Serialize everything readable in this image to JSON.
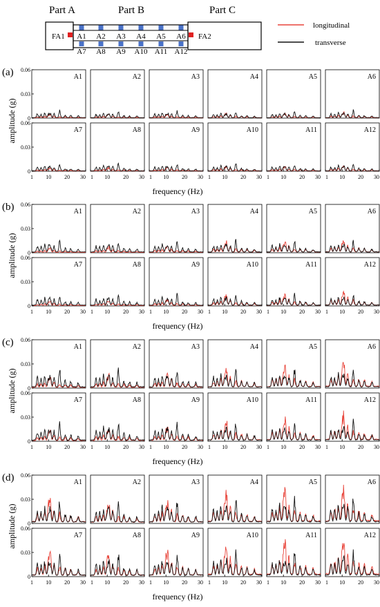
{
  "figure": {
    "legend": [
      {
        "label": "longitudinal",
        "color": "#e8443a"
      },
      {
        "label": "transverse",
        "color": "#111111"
      }
    ],
    "schematic": {
      "parts": [
        "Part A",
        "Part B",
        "Part C"
      ],
      "top_sensors": [
        "A1",
        "A2",
        "A3",
        "A4",
        "A5",
        "A6"
      ],
      "bottom_sensors": [
        "A7",
        "A8",
        "A9",
        "A10",
        "A11",
        "A12"
      ],
      "fixed_sensors": [
        "FA1",
        "FA2"
      ],
      "sensor_color": "#4a72c8",
      "fixed_sensor_color": "#e02020"
    },
    "panel_labels": [
      "(a)",
      "(b)",
      "(c)",
      "(d)"
    ]
  },
  "chart_data": {
    "type": "line",
    "xlabel": "frequency (Hz)",
    "ylabel": "amplitude (g)",
    "xlim": [
      1,
      30
    ],
    "ylim": [
      0,
      0.06
    ],
    "xticks": [
      "1",
      "10",
      "20",
      "30"
    ],
    "yticks": [
      "0",
      "0.03",
      "0.06"
    ],
    "subplot_titles": [
      "A1",
      "A2",
      "A3",
      "A4",
      "A5",
      "A6",
      "A7",
      "A8",
      "A9",
      "A10",
      "A11",
      "A12"
    ],
    "peak_frequencies_hz": [
      4,
      6,
      8,
      10,
      11,
      13,
      16,
      19,
      22,
      26
    ],
    "panels": [
      {
        "label": "(a)",
        "transverse_peak_amplitude_g": [
          0.008,
          0.007,
          0.008,
          0.007,
          0.007,
          0.008,
          0.008,
          0.008,
          0.008,
          0.008,
          0.008,
          0.008
        ],
        "longitudinal_peak_amplitude_g": [
          0.004,
          0.004,
          0.004,
          0.005,
          0.005,
          0.006,
          0.004,
          0.004,
          0.004,
          0.005,
          0.005,
          0.006
        ]
      },
      {
        "label": "(b)",
        "transverse_peak_amplitude_g": [
          0.013,
          0.013,
          0.013,
          0.013,
          0.013,
          0.013,
          0.012,
          0.012,
          0.012,
          0.013,
          0.013,
          0.013
        ],
        "longitudinal_peak_amplitude_g": [
          0.005,
          0.006,
          0.007,
          0.011,
          0.012,
          0.014,
          0.005,
          0.006,
          0.007,
          0.011,
          0.012,
          0.015
        ]
      },
      {
        "label": "(c)",
        "transverse_peak_amplitude_g": [
          0.02,
          0.02,
          0.02,
          0.02,
          0.02,
          0.021,
          0.019,
          0.02,
          0.02,
          0.02,
          0.02,
          0.021
        ],
        "longitudinal_peak_amplitude_g": [
          0.012,
          0.013,
          0.015,
          0.021,
          0.025,
          0.028,
          0.012,
          0.013,
          0.015,
          0.022,
          0.025,
          0.029
        ]
      },
      {
        "label": "(d)",
        "transverse_peak_amplitude_g": [
          0.024,
          0.024,
          0.025,
          0.026,
          0.027,
          0.028,
          0.024,
          0.024,
          0.025,
          0.026,
          0.027,
          0.028
        ],
        "longitudinal_peak_amplitude_g": [
          0.028,
          0.022,
          0.025,
          0.032,
          0.036,
          0.04,
          0.026,
          0.024,
          0.027,
          0.034,
          0.037,
          0.042
        ]
      }
    ]
  }
}
